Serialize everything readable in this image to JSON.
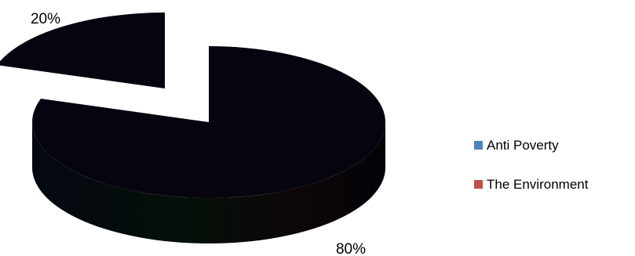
{
  "chart_data": {
    "type": "pie",
    "three_d": true,
    "exploded": true,
    "categories": [
      "Anti Poverty",
      "The Environment"
    ],
    "values": [
      80,
      20
    ],
    "data_labels": [
      "80%",
      "20%"
    ],
    "legend_placement": "right",
    "series_colors": [
      "#4f81bd",
      "#c0504d"
    ],
    "rendered_fill": "#05040f",
    "title": ""
  }
}
